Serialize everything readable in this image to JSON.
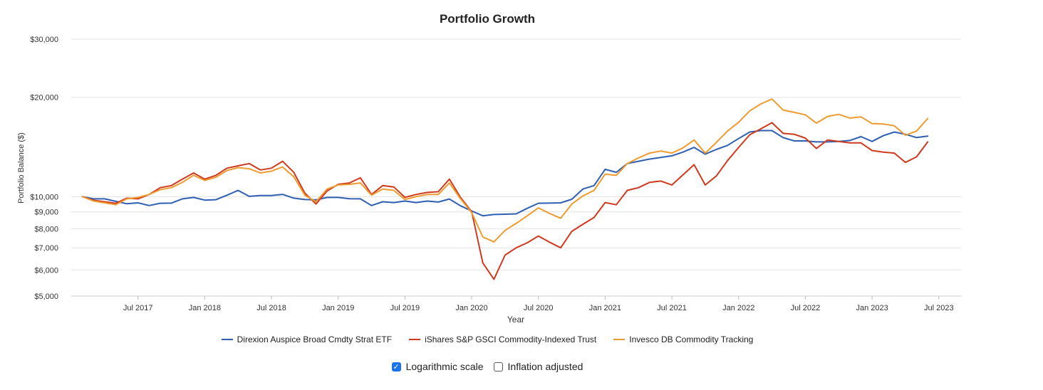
{
  "chart_data": {
    "type": "line",
    "title": "Portfolio Growth",
    "xlabel": "Year",
    "ylabel": "Portfolio Balance ($)",
    "yscale": "log",
    "ylim": [
      5000,
      30000
    ],
    "yticks": [
      5000,
      6000,
      7000,
      8000,
      9000,
      10000,
      20000,
      30000
    ],
    "ytick_labels": [
      "$5,000",
      "$6,000",
      "$7,000",
      "$8,000",
      "$9,000",
      "$10,000",
      "$20,000",
      "$30,000"
    ],
    "x_start": "2017-02",
    "xlim": [
      "2017-01",
      "2023-09"
    ],
    "xticks": [
      "2017-07",
      "2018-01",
      "2018-07",
      "2019-01",
      "2019-07",
      "2020-01",
      "2020-07",
      "2021-01",
      "2021-07",
      "2022-01",
      "2022-07",
      "2023-01",
      "2023-07"
    ],
    "xtick_labels": [
      "Jul 2017",
      "Jan 2018",
      "Jul 2018",
      "Jan 2019",
      "Jul 2019",
      "Jan 2020",
      "Jul 2020",
      "Jan 2021",
      "Jul 2021",
      "Jan 2022",
      "Jul 2022",
      "Jan 2023",
      "Jul 2023"
    ],
    "grid": true,
    "legend_position": "bottom",
    "series": [
      {
        "name": "Direxion Auspice Broad Cmdty Strat ETF",
        "color": "#2f5fb3",
        "values": [
          10000,
          9850,
          9850,
          9680,
          9520,
          9580,
          9400,
          9550,
          9560,
          9850,
          9950,
          9760,
          9790,
          10100,
          10450,
          10020,
          10080,
          10080,
          10160,
          9900,
          9800,
          9780,
          9950,
          9950,
          9860,
          9850,
          9400,
          9650,
          9600,
          9700,
          9600,
          9700,
          9630,
          9840,
          9380,
          9050,
          8750,
          8830,
          8850,
          8870,
          9220,
          9550,
          9560,
          9580,
          9820,
          10550,
          10800,
          12100,
          11850,
          12600,
          12800,
          13000,
          13150,
          13300,
          13650,
          14100,
          13450,
          13900,
          14300,
          15000,
          15700,
          15850,
          15850,
          15100,
          14750,
          14750,
          14650,
          14650,
          14700,
          14800,
          15200,
          14700,
          15300,
          15700,
          15450,
          15100,
          15250
        ]
      },
      {
        "name": "iShares S&P GSCI Commodity-Indexed Trust",
        "color": "#cf3a1e",
        "values": [
          10000,
          9750,
          9650,
          9550,
          9900,
          9850,
          10150,
          10650,
          10800,
          11300,
          11800,
          11300,
          11600,
          12200,
          12400,
          12600,
          12050,
          12200,
          12800,
          11850,
          10250,
          9500,
          10400,
          10900,
          11000,
          11400,
          10150,
          10800,
          10700,
          9950,
          10150,
          10300,
          10350,
          11300,
          9950,
          9000,
          6300,
          5620,
          6650,
          7000,
          7250,
          7600,
          7280,
          7000,
          7850,
          8250,
          8650,
          9600,
          9450,
          10450,
          10650,
          11050,
          11150,
          10850,
          11650,
          12500,
          10850,
          11550,
          12850,
          14100,
          15400,
          16050,
          16750,
          15550,
          15450,
          15050,
          14000,
          14850,
          14700,
          14550,
          14550,
          13800,
          13650,
          13550,
          12700,
          13200,
          14650
        ]
      },
      {
        "name": "Invesco DB Commodity Tracking",
        "color": "#ef9b30",
        "values": [
          10000,
          9700,
          9580,
          9450,
          9850,
          9950,
          10150,
          10500,
          10650,
          11050,
          11600,
          11200,
          11450,
          12000,
          12250,
          12150,
          11800,
          11950,
          12300,
          11500,
          10100,
          9650,
          10550,
          10850,
          10900,
          11000,
          10100,
          10550,
          10450,
          9800,
          10000,
          10150,
          10150,
          11000,
          9850,
          8950,
          7550,
          7300,
          7900,
          8300,
          8750,
          9250,
          8900,
          8600,
          9500,
          10050,
          10450,
          11700,
          11600,
          12600,
          13100,
          13550,
          13750,
          13550,
          14050,
          14850,
          13550,
          14600,
          15800,
          16800,
          18200,
          19100,
          19750,
          18300,
          18000,
          17700,
          16700,
          17500,
          17750,
          17300,
          17450,
          16650,
          16600,
          16400,
          15350,
          15800,
          17250
        ]
      }
    ]
  },
  "controls": {
    "log_scale_label": "Logarithmic scale",
    "log_scale_checked": true,
    "inflation_label": "Inflation adjusted",
    "inflation_checked": false
  }
}
